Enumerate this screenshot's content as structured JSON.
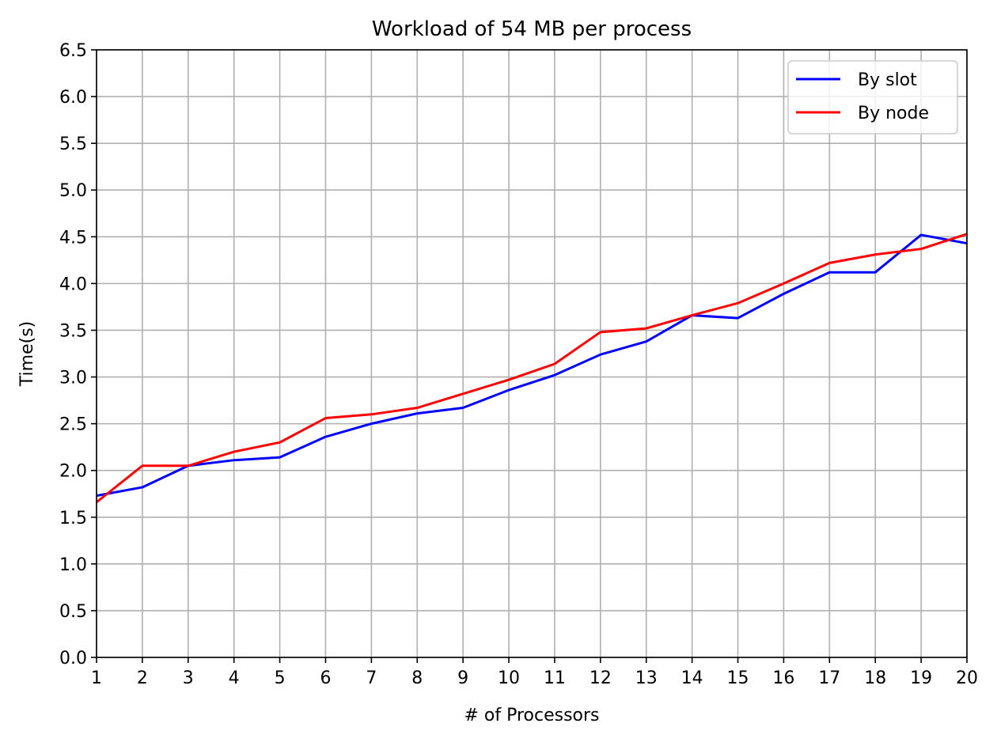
{
  "chart_data": {
    "type": "line",
    "title": "Workload of 54 MB per process",
    "xlabel": "# of Processors",
    "ylabel": "Time(s)",
    "xlim": [
      1,
      20
    ],
    "ylim": [
      0.0,
      6.5
    ],
    "grid": true,
    "legend_position": "top-right",
    "x": [
      1,
      2,
      3,
      4,
      5,
      6,
      7,
      8,
      9,
      10,
      11,
      12,
      13,
      14,
      15,
      16,
      17,
      18,
      19,
      20
    ],
    "xticks": [
      "1",
      "2",
      "3",
      "4",
      "5",
      "6",
      "7",
      "8",
      "9",
      "10",
      "11",
      "12",
      "13",
      "14",
      "15",
      "16",
      "17",
      "18",
      "19",
      "20"
    ],
    "yticks": [
      "0.0",
      "0.5",
      "1.0",
      "1.5",
      "2.0",
      "2.5",
      "3.0",
      "3.5",
      "4.0",
      "4.5",
      "5.0",
      "5.5",
      "6.0",
      "6.5"
    ],
    "series": [
      {
        "name": "By slot",
        "color": "#0000ff",
        "values": [
          1.73,
          1.82,
          2.05,
          2.11,
          2.14,
          2.36,
          2.5,
          2.61,
          2.67,
          2.86,
          3.02,
          3.24,
          3.38,
          3.66,
          3.63,
          3.89,
          4.12,
          4.12,
          4.52,
          4.43
        ]
      },
      {
        "name": "By node",
        "color": "#ff0000",
        "values": [
          1.66,
          2.05,
          2.05,
          2.2,
          2.3,
          2.56,
          2.6,
          2.67,
          2.82,
          2.97,
          3.14,
          3.48,
          3.52,
          3.66,
          3.79,
          4.0,
          4.22,
          4.31,
          4.37,
          4.53
        ]
      }
    ]
  }
}
